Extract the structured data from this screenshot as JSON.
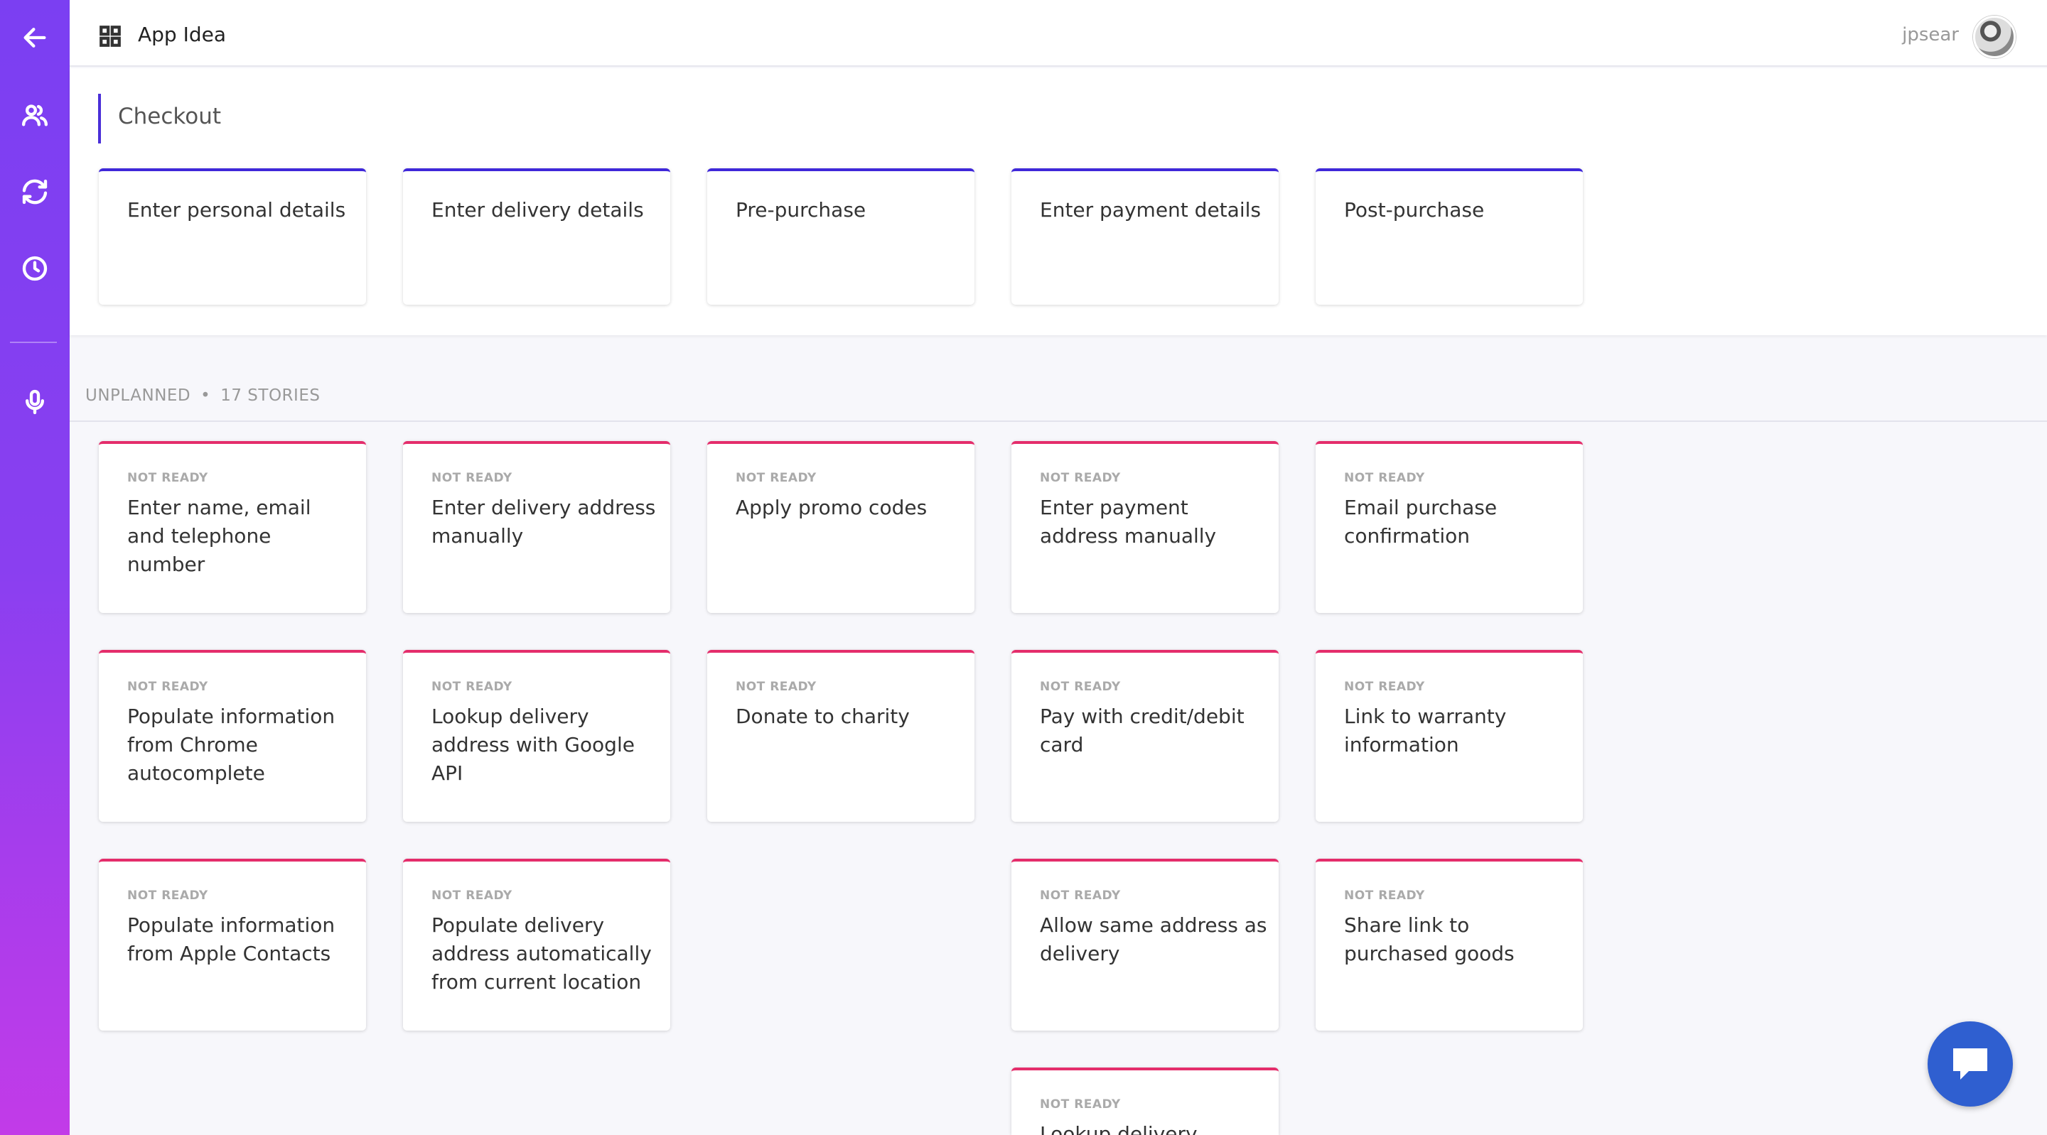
{
  "header": {
    "app_title": "App Idea",
    "username": "jpsear"
  },
  "sidebar": {
    "items": [
      {
        "icon": "arrow-left-icon"
      },
      {
        "icon": "users-icon"
      },
      {
        "icon": "refresh-icon"
      },
      {
        "icon": "clock-icon"
      },
      {
        "icon": "microphone-icon"
      }
    ]
  },
  "activity": {
    "title": "Checkout",
    "steps": [
      "Enter personal details",
      "Enter delivery details",
      "Pre-purchase",
      "Enter payment details",
      "Post-purchase"
    ]
  },
  "unplanned": {
    "label": "UNPLANNED",
    "separator": "•",
    "count_label": "17 STORIES"
  },
  "stories": [
    {
      "status": "NOT READY",
      "title": "Enter name, email and telephone number"
    },
    {
      "status": "NOT READY",
      "title": "Enter delivery address manually"
    },
    {
      "status": "NOT READY",
      "title": "Apply promo codes"
    },
    {
      "status": "NOT READY",
      "title": "Enter payment address manually"
    },
    {
      "status": "NOT READY",
      "title": "Email purchase confirmation"
    },
    {
      "status": "NOT READY",
      "title": "Populate information from Chrome autocomplete"
    },
    {
      "status": "NOT READY",
      "title": "Lookup delivery address with Google API"
    },
    {
      "status": "NOT READY",
      "title": "Donate to charity"
    },
    {
      "status": "NOT READY",
      "title": "Pay with credit/debit card"
    },
    {
      "status": "NOT READY",
      "title": "Link to warranty information"
    },
    {
      "status": "NOT READY",
      "title": "Populate information from Apple Contacts"
    },
    {
      "status": "NOT READY",
      "title": "Populate delivery address automatically from current location"
    },
    {
      "status": "NOT READY",
      "title": "Allow same address as delivery"
    },
    {
      "status": "NOT READY",
      "title": "Share link to purchased goods"
    },
    {
      "status": "NOT READY",
      "title": "Lookup delivery"
    }
  ],
  "colors": {
    "sidebar_top": "#7b3ff2",
    "sidebar_bottom": "#c23be8",
    "activity_accent": "#3f28d9",
    "story_accent": "#e42d6b",
    "chat_button": "#2f5fd0"
  },
  "chat": {
    "icon": "chat-bubble-icon"
  }
}
